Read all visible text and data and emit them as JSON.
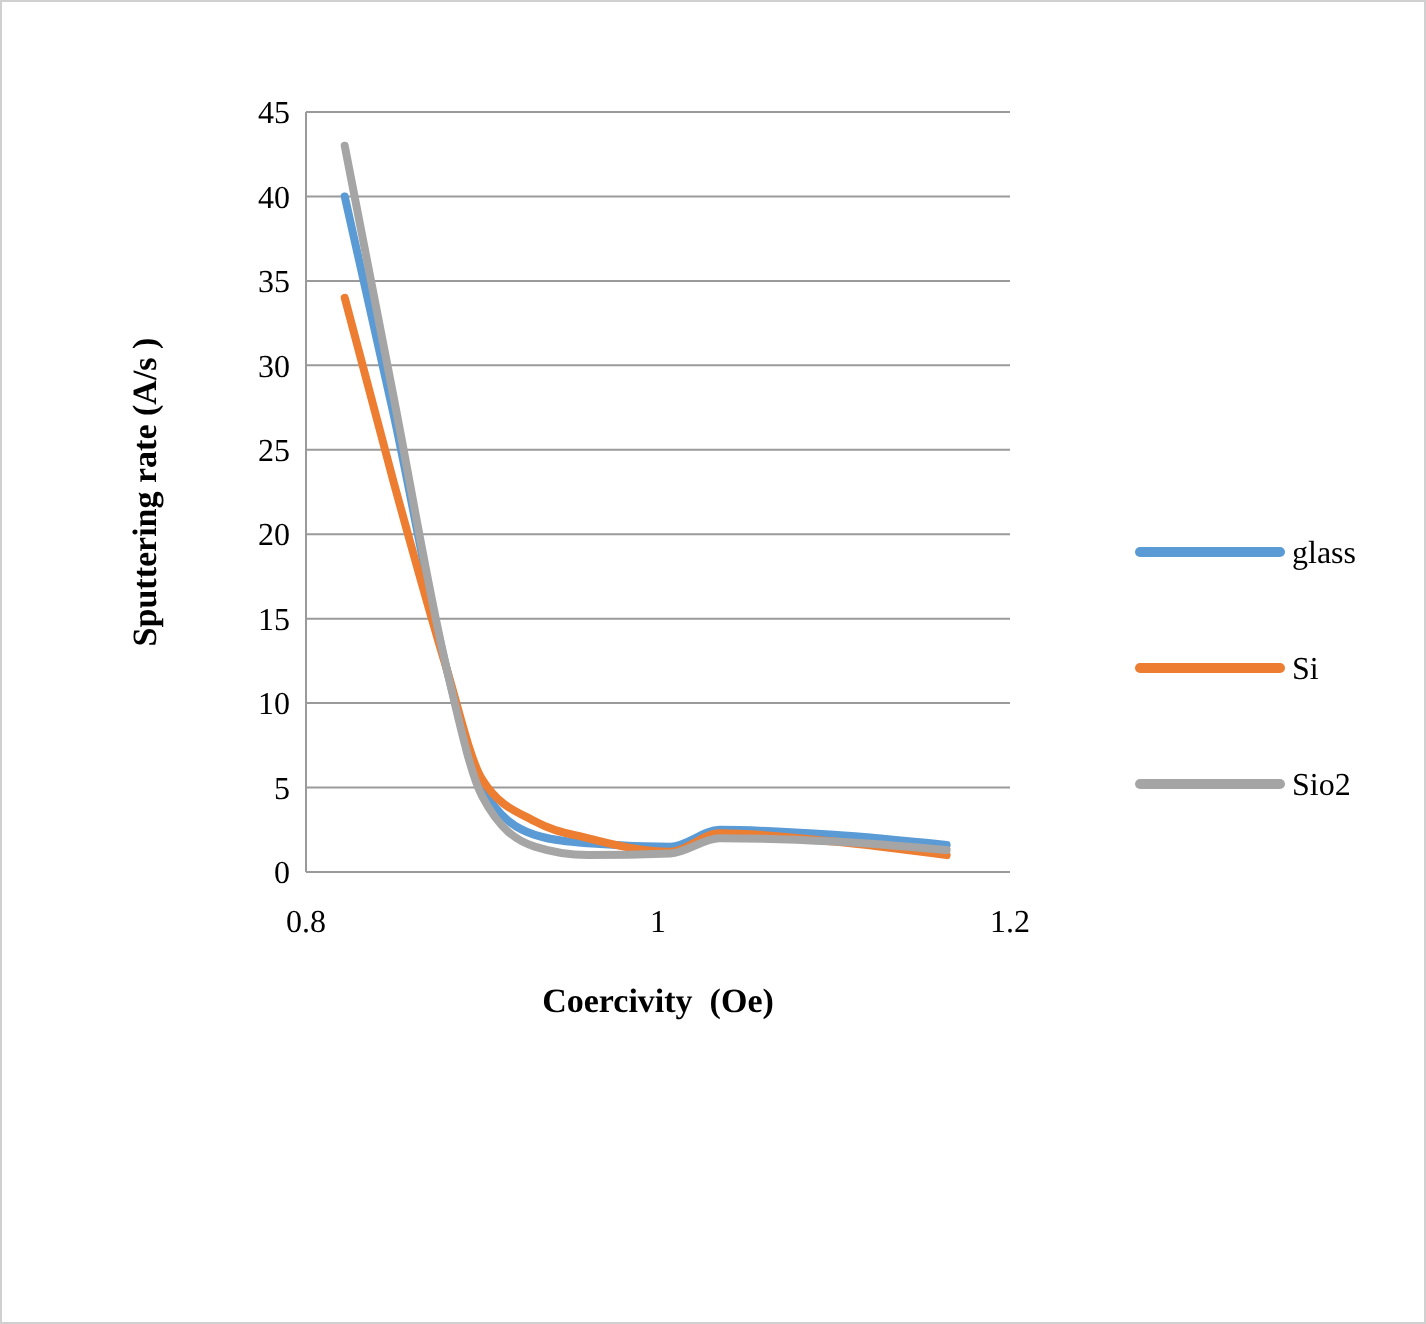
{
  "chart_data": {
    "type": "line",
    "xlabel": "Coercivity  (Oe)",
    "ylabel": "Sputtering rate (A/s )",
    "xlim": [
      0.8,
      1.2
    ],
    "xticks": [
      0.8,
      1,
      1.2
    ],
    "ylim": [
      0,
      45
    ],
    "yticks": [
      0,
      5,
      10,
      15,
      20,
      25,
      30,
      35,
      40,
      45
    ],
    "grid": "y",
    "legend": "right",
    "line_style": "solid",
    "marker": "none",
    "series": [
      {
        "name": "glass",
        "color": "#5b9bd5",
        "x": [
          0.822,
          0.85,
          0.88,
          0.9,
          0.93,
          0.96,
          1.007,
          1.035,
          1.1,
          1.164
        ],
        "values": [
          40,
          27,
          12,
          5,
          2.2,
          1.7,
          1.5,
          2.5,
          2.2,
          1.6
        ]
      },
      {
        "name": "Si",
        "color": "#ed7d31",
        "x": [
          0.822,
          0.85,
          0.88,
          0.9,
          0.93,
          0.96,
          1.007,
          1.035,
          1.1,
          1.164
        ],
        "values": [
          34,
          23,
          12,
          5.5,
          3,
          2,
          1.2,
          2.3,
          1.8,
          1
        ]
      },
      {
        "name": "Sio2",
        "color": "#a5a5a5",
        "x": [
          0.822,
          0.85,
          0.88,
          0.9,
          0.93,
          0.96,
          1.007,
          1.035,
          1.1,
          1.164
        ],
        "values": [
          43,
          28,
          12,
          4.5,
          1.5,
          1,
          1.1,
          2,
          1.8,
          1.3
        ]
      }
    ]
  }
}
